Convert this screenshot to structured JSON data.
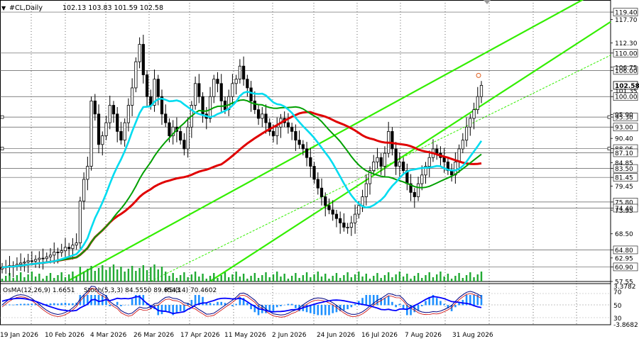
{
  "header": {
    "symbol": "#CL,Daily",
    "ohlc": "102.13 103.83 101.59 102.58"
  },
  "indicator_header": {
    "osma": "OsMA(12,26,9) 1.6651",
    "stoch": "Stoch(5,3,3) 84.5550 89.6543",
    "rsi": "RSI(14) 70.4602"
  },
  "colors": {
    "background": "#ffffff",
    "grid": "#000000",
    "candle_body": "#000000",
    "ma_fast": "#00dcf0",
    "ma_slow": "#00a000",
    "ma_long": "#e00000",
    "channel": "#33ee00",
    "volume": "#22aa33",
    "osma_bars": "#1e90ff",
    "stoch_main": "#000080",
    "stoch_signal": "#cc0000",
    "rsi_line": "#0000ff"
  },
  "chart_data": {
    "type": "candlestick",
    "timeframe": "Daily",
    "ylim": [
      57.55,
      121.2
    ],
    "x_ticks": [
      "19 Jan 2026",
      "10 Feb 2026",
      "4 Mar 2026",
      "26 Mar 2026",
      "17 Apr 2026",
      "11 May 2026",
      "2 Jun 2026",
      "24 Jun 2026",
      "16 Jul 2026",
      "7 Aug 2026",
      "31 Aug 2026"
    ],
    "y_ticks": [
      "117.70",
      "112.30",
      "106.75",
      "101.35",
      "95.90",
      "90.40",
      "84.85",
      "79.45",
      "73.95",
      "68.50",
      "62.95",
      "57.55"
    ],
    "price_levels": [
      {
        "label": "119.40",
        "value": 119.4
      },
      {
        "label": "110.00",
        "value": 110.0
      },
      {
        "label": "106.00",
        "value": 106.0
      },
      {
        "label": "100.00",
        "value": 100.0
      },
      {
        "label": "95.30",
        "value": 95.3
      },
      {
        "label": "93.00",
        "value": 93.0
      },
      {
        "label": "88.06",
        "value": 88.06
      },
      {
        "label": "87.10",
        "value": 87.1
      },
      {
        "label": "83.50",
        "value": 83.5
      },
      {
        "label": "81.45",
        "value": 81.45
      },
      {
        "label": "75.80",
        "value": 75.8
      },
      {
        "label": "74.40",
        "value": 74.4
      },
      {
        "label": "64.80",
        "value": 64.8
      },
      {
        "label": "60.90",
        "value": 60.9
      }
    ],
    "last_price": {
      "label": "102.58",
      "value": 102.58
    },
    "closes": [
      60.8,
      60.9,
      61.2,
      61.0,
      61.5,
      61.8,
      62.0,
      62.3,
      62.2,
      62.6,
      62.9,
      62.8,
      63.2,
      63.6,
      64.3,
      64.2,
      64.6,
      65.4,
      65.1,
      65.9,
      66.4,
      76,
      81,
      84,
      99,
      96,
      89,
      91,
      94,
      98,
      96,
      92,
      90,
      94,
      98,
      102,
      108,
      112,
      105,
      100,
      98,
      104,
      100,
      96,
      94,
      91,
      93,
      92,
      90,
      88,
      93,
      98,
      103,
      100,
      96,
      95,
      100,
      104,
      103,
      99,
      97,
      100,
      103,
      104,
      107,
      104,
      102,
      99,
      97,
      95,
      96,
      94,
      92,
      91,
      93,
      95,
      94,
      93,
      92,
      90,
      89,
      88,
      86,
      84,
      81,
      79,
      77,
      75,
      74,
      73,
      72,
      71,
      70,
      70,
      71,
      73,
      75,
      77,
      80,
      83,
      85,
      86,
      84,
      87,
      92,
      88,
      84,
      85,
      83,
      80,
      78,
      77,
      80,
      82,
      84,
      86,
      88,
      87,
      86,
      85,
      83,
      82,
      85,
      88,
      90,
      93,
      95,
      97,
      100,
      102.58
    ],
    "osma_range": [
      -3.8682,
      3.3782
    ],
    "rsi_levels": [
      70,
      50,
      30
    ],
    "indicator_ticks": [
      "3.3782",
      "70",
      "50",
      "30",
      "-3.8682"
    ]
  }
}
